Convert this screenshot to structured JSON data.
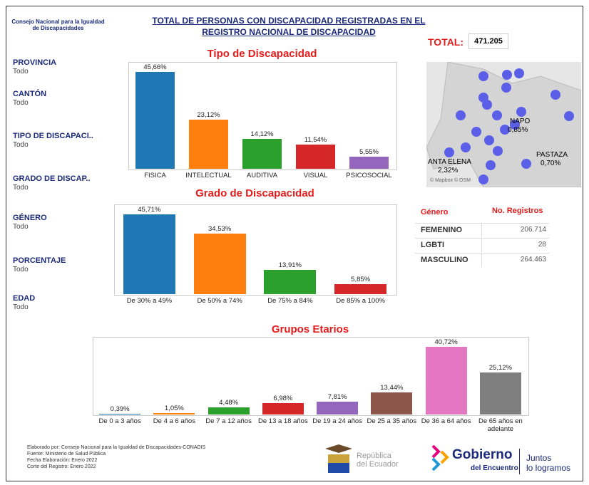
{
  "header": {
    "org": "Consejo Nacional para la Igualdad de Discapacidades",
    "title_line1": "TOTAL DE PERSONAS CON DISCAPACIDAD REGISTRADAS EN EL",
    "title_line2": "REGISTRO NACIONAL DE DISCAPACIDAD",
    "total_label": "TOTAL:",
    "total_value": "471.205"
  },
  "filters": [
    {
      "label": "PROVINCIA",
      "value": "Todo"
    },
    {
      "label": "CANTÓN",
      "value": "Todo"
    },
    {
      "label": "TIPO DE DISCAPACI..",
      "value": "Todo"
    },
    {
      "label": "GRADO DE DISCAP..",
      "value": "Todo"
    },
    {
      "label": "GÉNERO",
      "value": "Todo"
    },
    {
      "label": "PORCENTAJE",
      "value": "Todo"
    },
    {
      "label": "EDAD",
      "value": "Todo"
    }
  ],
  "chart_data": [
    {
      "type": "bar",
      "title": "Tipo de Discapacidad",
      "categories": [
        "FISICA",
        "INTELECTUAL",
        "AUDITIVA",
        "VISUAL",
        "PSICOSOCIAL"
      ],
      "values": [
        45.66,
        23.12,
        14.12,
        11.54,
        5.55
      ],
      "value_labels": [
        "45,66%",
        "23,12%",
        "14,12%",
        "11,54%",
        "5,55%"
      ],
      "colors": [
        "#1f77b4",
        "#ff7f0e",
        "#2ca02c",
        "#d62728",
        "#9467bd"
      ]
    },
    {
      "type": "bar",
      "title": "Grado de Discapacidad",
      "categories": [
        "De 30% a 49%",
        "De 50% a 74%",
        "De 75% a 84%",
        "De 85% a 100%"
      ],
      "values": [
        45.71,
        34.53,
        13.91,
        5.85
      ],
      "value_labels": [
        "45,71%",
        "34,53%",
        "13,91%",
        "5,85%"
      ],
      "colors": [
        "#1f77b4",
        "#ff7f0e",
        "#2ca02c",
        "#d62728"
      ]
    },
    {
      "type": "bar",
      "title": "Grupos Etarios",
      "categories": [
        "De 0 a 3 años",
        "De 4 a 6 años",
        "De 7 a 12 años",
        "De 13 a 18 años",
        "De 19 a 24 años",
        "De 25 a 35 años",
        "De 36 a 64 años",
        "De 65 años en adelante"
      ],
      "values": [
        0.39,
        1.05,
        4.48,
        6.98,
        7.81,
        13.44,
        40.72,
        25.12
      ],
      "value_labels": [
        "0,39%",
        "1,05%",
        "4,48%",
        "6,98%",
        "7,81%",
        "13,44%",
        "40,72%",
        "25,12%"
      ],
      "colors": [
        "#1f77b4",
        "#ff7f0e",
        "#2ca02c",
        "#d62728",
        "#9467bd",
        "#8c564b",
        "#e377c2",
        "#7f7f7f"
      ]
    }
  ],
  "map": {
    "labels": [
      {
        "name": "NAPO",
        "value": "0,85%"
      },
      {
        "name": "PASTAZA",
        "value": "0,70%"
      },
      {
        "name": "ANTA ELENA",
        "value": "2,32%"
      }
    ],
    "credit": "© Mapbox © OSM"
  },
  "table": {
    "header": [
      "Género",
      "No. Registros"
    ],
    "rows": [
      [
        "FEMENINO",
        "206.714"
      ],
      [
        "LGBTI",
        "28"
      ],
      [
        "MASCULINO",
        "264.463"
      ]
    ]
  },
  "footer": {
    "lines": [
      "Elaborado por: Consejo Nacional para la Igualdad de Discapacidades-CONADIS",
      "Fuente: Ministerio de Salud Pública",
      "Fecha Elaboración: Enero 2022",
      "Corte del Registro: Enero 2022"
    ],
    "logo1": [
      "República",
      "del Ecuador"
    ],
    "logo2": [
      "Gobierno",
      "del Encuentro"
    ],
    "logo3": [
      "Juntos",
      "lo logramos"
    ]
  }
}
